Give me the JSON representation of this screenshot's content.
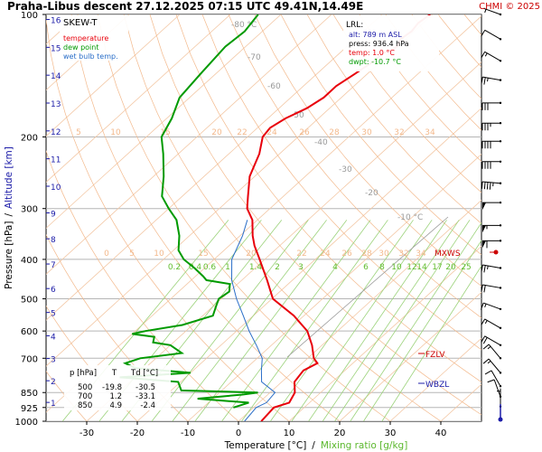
{
  "header": {
    "title": "Praha-Libus   descent   27.12.2025 07:15 UTC  49.41N,14.49E",
    "credit": "CHMI © 2025"
  },
  "legend": {
    "title": "SKEW-T",
    "items": [
      {
        "label": "temperature",
        "color": "#e8000b"
      },
      {
        "label": "dew point",
        "color": "#009a00"
      },
      {
        "label": "wet bulb temp.",
        "color": "#2a6ec8"
      }
    ]
  },
  "lrl": {
    "title": "LRL:",
    "alt": "alt: 789 m ASL",
    "press": "press: 936.4 hPa",
    "temp": "temp: 1.0 °C",
    "dwpt": "dwpt: -10.7 °C"
  },
  "levels_table": {
    "header": [
      "p [hPa]",
      "T",
      "Td [°C]"
    ],
    "rows": [
      [
        "500",
        "-19.8",
        "-30.5"
      ],
      [
        "700",
        "1.2",
        "-33.1"
      ],
      [
        "850",
        "4.9",
        "-2.4"
      ]
    ]
  },
  "markers": {
    "mxws": "MXWS",
    "fzlv": "FZLV",
    "wbzl": "WBZL"
  },
  "axes": {
    "xlabel": "Temperature [°C]",
    "xlabel_sep": "/",
    "xlabel2": "Mixing ratio [g/kg]",
    "ylabel": "Pressure [hPa]",
    "ylabel_sep": "/",
    "ylabel2": "Altitude [km]"
  },
  "colors": {
    "temperature": "#e8000b",
    "dewpoint": "#009a00",
    "wetbulb": "#2a6ec8",
    "isotherm": "#f3c8a6",
    "dry_adiabat": "#f3b98c",
    "mixing_ratio": "#9bd27a",
    "isobar": "#b5b5b5",
    "altitude": "#1c1ca8",
    "mark_red": "#cc0000",
    "mark_blue": "#1c1ca8",
    "skew_grey": "#9a9a9a"
  },
  "chart_data": {
    "type": "line",
    "xlim": [
      -35,
      45
    ],
    "ylim": [
      1000,
      100
    ],
    "y_scale": "log",
    "x_ticks": [
      "-30",
      "-20",
      "-10",
      "0",
      "10",
      "20",
      "30",
      "40"
    ],
    "pressure_ticks": [
      "100",
      "200",
      "300",
      "400",
      "500",
      "600",
      "700",
      "850",
      "925",
      "1000"
    ],
    "altitude_ticks": [
      "1",
      "2",
      "3",
      "4",
      "5",
      "6",
      "7",
      "8",
      "9",
      "10",
      "11",
      "12",
      "13",
      "14",
      "15",
      "16"
    ],
    "mixing_ratio_labels": [
      "0.2",
      "0.4",
      "0.6",
      "1",
      "1.4",
      "2",
      "3",
      "4",
      "6",
      "8",
      "10",
      "12",
      "14",
      "17",
      "20",
      "25"
    ],
    "skewed_isotherm_labels": [
      "-80 °C",
      "-70",
      "-60",
      "-50",
      "-40",
      "-30",
      "-20",
      "-10 °C"
    ],
    "dry_adiabat_labels": [
      [
        "5",
        "10",
        "15",
        "20",
        "22",
        "24",
        "26",
        "28",
        "30",
        "32",
        "34"
      ],
      [
        "0",
        "5",
        "10",
        "15",
        "20",
        "22",
        "24",
        "26",
        "28",
        "30",
        "32",
        "34"
      ]
    ],
    "series": [
      {
        "name": "temperature",
        "points": [
          [
            1000,
            4.5
          ],
          [
            925,
            4.0
          ],
          [
            900,
            6.0
          ],
          [
            850,
            4.9
          ],
          [
            800,
            2.5
          ],
          [
            750,
            1.8
          ],
          [
            720,
            3.0
          ],
          [
            700,
            1.2
          ],
          [
            650,
            -2.0
          ],
          [
            600,
            -6.0
          ],
          [
            550,
            -12.0
          ],
          [
            500,
            -19.8
          ],
          [
            450,
            -25.0
          ],
          [
            400,
            -31.0
          ],
          [
            370,
            -35.0
          ],
          [
            350,
            -37.5
          ],
          [
            320,
            -41.0
          ],
          [
            300,
            -44.5
          ],
          [
            280,
            -47.0
          ],
          [
            250,
            -51.0
          ],
          [
            220,
            -54.0
          ],
          [
            200,
            -57.0
          ],
          [
            190,
            -57.5
          ],
          [
            180,
            -56.5
          ],
          [
            170,
            -54.5
          ],
          [
            160,
            -53.5
          ],
          [
            150,
            -53.5
          ],
          [
            140,
            -52.5
          ],
          [
            130,
            -51.5
          ],
          [
            125,
            -51.5
          ],
          [
            120,
            -50.0
          ],
          [
            115,
            -51.0
          ],
          [
            110,
            -50.5
          ],
          [
            105,
            -51.0
          ],
          [
            100,
            -50.5
          ]
        ]
      },
      {
        "name": "dew point",
        "points": [
          [
            925,
            -4.0
          ],
          [
            900,
            -2.0
          ],
          [
            880,
            -13.0
          ],
          [
            860,
            -5.0
          ],
          [
            850,
            -2.4
          ],
          [
            840,
            -18.0
          ],
          [
            800,
            -20.5
          ],
          [
            780,
            -33.0
          ],
          [
            760,
            -20.0
          ],
          [
            740,
            -32.0
          ],
          [
            720,
            -35.0
          ],
          [
            700,
            -33.1
          ],
          [
            680,
            -26.0
          ],
          [
            650,
            -30.0
          ],
          [
            640,
            -34.0
          ],
          [
            620,
            -35.0
          ],
          [
            610,
            -40.0
          ],
          [
            600,
            -38.0
          ],
          [
            580,
            -32.0
          ],
          [
            550,
            -28.0
          ],
          [
            520,
            -29.5
          ],
          [
            500,
            -30.5
          ],
          [
            480,
            -30.0
          ],
          [
            460,
            -31.5
          ],
          [
            450,
            -37.0
          ],
          [
            440,
            -38.5
          ],
          [
            420,
            -42.0
          ],
          [
            400,
            -46.0
          ],
          [
            380,
            -49.0
          ],
          [
            350,
            -52.0
          ],
          [
            320,
            -56.0
          ],
          [
            300,
            -60.0
          ],
          [
            280,
            -64.0
          ],
          [
            250,
            -68.0
          ],
          [
            220,
            -73.0
          ],
          [
            200,
            -77.0
          ],
          [
            180,
            -79.0
          ],
          [
            160,
            -82.0
          ],
          [
            140,
            -83.0
          ],
          [
            120,
            -84.0
          ],
          [
            110,
            -83.5
          ],
          [
            100,
            -84.5
          ]
        ]
      },
      {
        "name": "wet bulb temp.",
        "points": [
          [
            1000,
            1.2
          ],
          [
            925,
            0.5
          ],
          [
            900,
            1.5
          ],
          [
            850,
            1.0
          ],
          [
            800,
            -4.0
          ],
          [
            750,
            -6.5
          ],
          [
            700,
            -9.0
          ],
          [
            650,
            -13.0
          ],
          [
            600,
            -17.5
          ],
          [
            550,
            -22.0
          ],
          [
            500,
            -27.0
          ],
          [
            450,
            -32.0
          ],
          [
            400,
            -36.5
          ],
          [
            350,
            -39.5
          ],
          [
            320,
            -42.0
          ]
        ]
      }
    ],
    "wind_barbs": [
      {
        "p": 100,
        "dir": 290,
        "spd": 5
      },
      {
        "p": 115,
        "dir": 300,
        "spd": 10
      },
      {
        "p": 130,
        "dir": 300,
        "spd": 15
      },
      {
        "p": 145,
        "dir": 280,
        "spd": 25
      },
      {
        "p": 165,
        "dir": 270,
        "spd": 30
      },
      {
        "p": 185,
        "dir": 270,
        "spd": 35
      },
      {
        "p": 205,
        "dir": 270,
        "spd": 40
      },
      {
        "p": 230,
        "dir": 270,
        "spd": 40
      },
      {
        "p": 260,
        "dir": 275,
        "spd": 45
      },
      {
        "p": 290,
        "dir": 270,
        "spd": 50
      },
      {
        "p": 330,
        "dir": 270,
        "spd": 55
      },
      {
        "p": 360,
        "dir": 270,
        "spd": 60
      },
      {
        "p": 420,
        "dir": 280,
        "spd": 25
      },
      {
        "p": 470,
        "dir": 280,
        "spd": 20
      },
      {
        "p": 530,
        "dir": 290,
        "spd": 15
      },
      {
        "p": 590,
        "dir": 300,
        "spd": 15
      },
      {
        "p": 650,
        "dir": 300,
        "spd": 20
      },
      {
        "p": 700,
        "dir": 320,
        "spd": 15
      },
      {
        "p": 760,
        "dir": 320,
        "spd": 15
      },
      {
        "p": 820,
        "dir": 330,
        "spd": 10
      },
      {
        "p": 870,
        "dir": 340,
        "spd": 10
      },
      {
        "p": 920,
        "dir": 0,
        "spd": 5
      }
    ]
  }
}
